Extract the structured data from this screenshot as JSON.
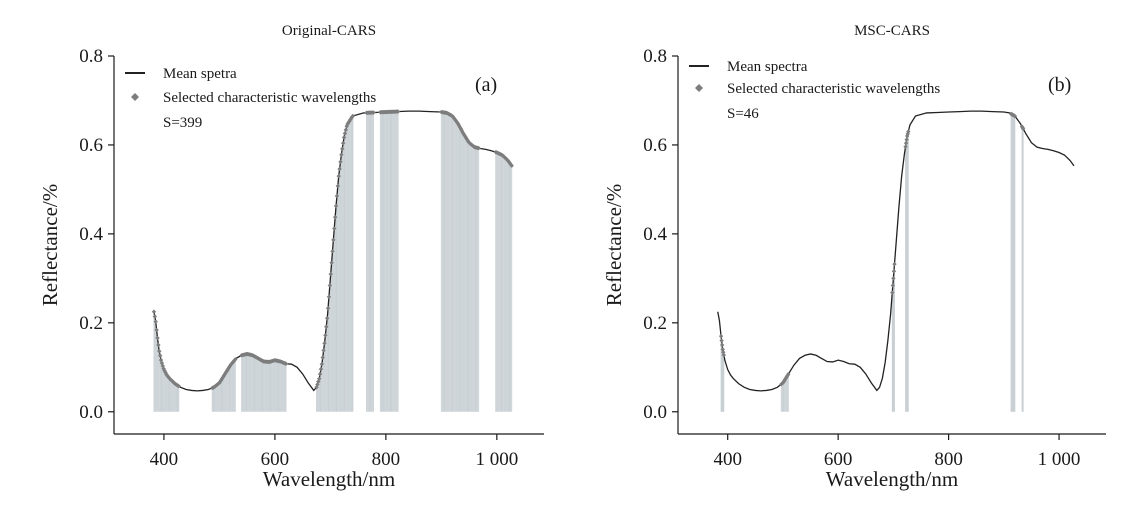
{
  "figure": {
    "panels": [
      {
        "title": "Original-CARS",
        "tag": "(a)",
        "legend": {
          "line_label": "Mean spetra",
          "marker_label": "Selected characteristic wavelengths",
          "count_label": "S=399"
        }
      },
      {
        "title": "MSC-CARS",
        "tag": "(b)",
        "legend": {
          "line_label": "Mean spectra",
          "marker_label": "Selected characteristic wavelengths",
          "count_label": "S=46"
        }
      }
    ],
    "colors": {
      "curve": "#222222",
      "markers": "#7d7d7d",
      "selection_lines": "#c9d0d4",
      "axes": "#1a1a1a"
    }
  },
  "chart_data": [
    {
      "type": "line",
      "title": "Original-CARS",
      "xlabel": "Wavelength/nm",
      "ylabel": "Reflectance/%",
      "xlim": [
        310,
        1085
      ],
      "ylim": [
        -0.05,
        0.8
      ],
      "xticks": [
        400,
        600,
        800,
        1000
      ],
      "xtick_labels": [
        "400",
        "600",
        "800",
        "1 000"
      ],
      "yticks": [
        0.0,
        0.2,
        0.4,
        0.6,
        0.8
      ],
      "ytick_labels": [
        "0.0",
        "0.2",
        "0.4",
        "0.6",
        "0.8"
      ],
      "grid": false,
      "legend_position": "top-left",
      "series": [
        {
          "name": "Mean spetra",
          "x": [
            382,
            385,
            388,
            391,
            395,
            400,
            405,
            410,
            420,
            430,
            440,
            450,
            460,
            470,
            480,
            490,
            500,
            510,
            520,
            530,
            540,
            550,
            560,
            570,
            580,
            590,
            600,
            610,
            620,
            630,
            640,
            650,
            660,
            670,
            675,
            680,
            685,
            690,
            695,
            700,
            705,
            710,
            715,
            720,
            725,
            730,
            740,
            760,
            780,
            800,
            820,
            840,
            860,
            880,
            900,
            910,
            920,
            930,
            940,
            950,
            960,
            970,
            980,
            990,
            1000,
            1010,
            1020,
            1027
          ],
          "values": [
            0.225,
            0.205,
            0.17,
            0.14,
            0.115,
            0.095,
            0.083,
            0.075,
            0.063,
            0.055,
            0.05,
            0.048,
            0.047,
            0.048,
            0.05,
            0.055,
            0.065,
            0.085,
            0.105,
            0.12,
            0.127,
            0.13,
            0.127,
            0.12,
            0.113,
            0.112,
            0.116,
            0.113,
            0.108,
            0.107,
            0.1,
            0.085,
            0.065,
            0.048,
            0.055,
            0.075,
            0.11,
            0.16,
            0.22,
            0.3,
            0.38,
            0.46,
            0.53,
            0.58,
            0.62,
            0.645,
            0.665,
            0.672,
            0.673,
            0.674,
            0.675,
            0.676,
            0.676,
            0.675,
            0.674,
            0.672,
            0.665,
            0.648,
            0.625,
            0.605,
            0.595,
            0.592,
            0.59,
            0.587,
            0.583,
            0.577,
            0.565,
            0.553
          ]
        }
      ],
      "selected_ranges_nm": [
        [
          382,
          427
        ],
        [
          487,
          530
        ],
        [
          540,
          620
        ],
        [
          675,
          742
        ],
        [
          765,
          778
        ],
        [
          790,
          822
        ],
        [
          900,
          968
        ],
        [
          998,
          1027
        ]
      ]
    },
    {
      "type": "line",
      "title": "MSC-CARS",
      "xlabel": "Wavelength/nm",
      "ylabel": "Reflectance/%",
      "xlim": [
        310,
        1085
      ],
      "ylim": [
        -0.05,
        0.8
      ],
      "xticks": [
        400,
        600,
        800,
        1000
      ],
      "xtick_labels": [
        "400",
        "600",
        "800",
        "1 000"
      ],
      "yticks": [
        0.0,
        0.2,
        0.4,
        0.6,
        0.8
      ],
      "ytick_labels": [
        "0.0",
        "0.2",
        "0.4",
        "0.6",
        "0.8"
      ],
      "grid": false,
      "legend_position": "top-left",
      "series": [
        {
          "name": "Mean spectra",
          "x": [
            382,
            385,
            388,
            391,
            395,
            400,
            405,
            410,
            420,
            430,
            440,
            450,
            460,
            470,
            480,
            490,
            500,
            510,
            520,
            530,
            540,
            550,
            560,
            570,
            580,
            590,
            600,
            610,
            620,
            630,
            640,
            650,
            660,
            670,
            675,
            680,
            685,
            690,
            695,
            700,
            705,
            710,
            715,
            720,
            725,
            730,
            740,
            760,
            780,
            800,
            820,
            840,
            860,
            880,
            900,
            910,
            920,
            930,
            940,
            950,
            960,
            970,
            980,
            990,
            1000,
            1010,
            1020,
            1027
          ],
          "values": [
            0.225,
            0.205,
            0.17,
            0.14,
            0.115,
            0.095,
            0.083,
            0.075,
            0.063,
            0.055,
            0.05,
            0.048,
            0.047,
            0.048,
            0.05,
            0.055,
            0.065,
            0.085,
            0.105,
            0.12,
            0.127,
            0.13,
            0.127,
            0.12,
            0.113,
            0.112,
            0.116,
            0.113,
            0.108,
            0.107,
            0.1,
            0.085,
            0.065,
            0.048,
            0.055,
            0.075,
            0.11,
            0.16,
            0.22,
            0.3,
            0.38,
            0.46,
            0.53,
            0.58,
            0.62,
            0.645,
            0.665,
            0.672,
            0.673,
            0.674,
            0.675,
            0.676,
            0.676,
            0.675,
            0.674,
            0.672,
            0.665,
            0.648,
            0.625,
            0.605,
            0.595,
            0.592,
            0.59,
            0.587,
            0.583,
            0.577,
            0.565,
            0.553
          ]
        }
      ],
      "selected_ranges_nm": [
        [
          388,
          393
        ],
        [
          497,
          510
        ],
        [
          698,
          702
        ],
        [
          722,
          727
        ],
        [
          913,
          920
        ],
        [
          933,
          935
        ]
      ]
    }
  ]
}
